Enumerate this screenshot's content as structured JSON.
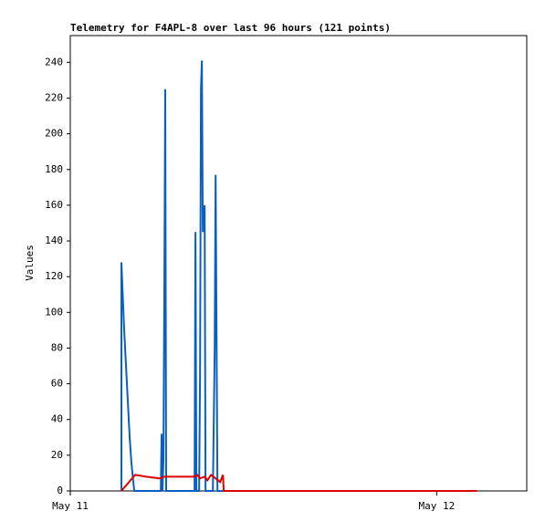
{
  "chart_data": {
    "type": "line",
    "title": "Telemetry for F4APL-8 over last 96 hours (121 points)",
    "y_label": "Values",
    "xlim": [
      0,
      29.9
    ],
    "xticks": [
      {
        "value": 0,
        "label": "May 11"
      },
      {
        "value": 24,
        "label": "May 12"
      }
    ],
    "ylim": [
      0,
      255
    ],
    "yticks": [
      0,
      20,
      40,
      60,
      80,
      100,
      120,
      140,
      160,
      180,
      200,
      220,
      240
    ],
    "grid": false,
    "series": [
      {
        "color": "#0a5fc4",
        "x": [
          3.35,
          3.35,
          3.41,
          3.53,
          3.65,
          3.77,
          3.89,
          4.01,
          4.19,
          5.93,
          5.98,
          6.04,
          6.1,
          6.16,
          6.22,
          6.28,
          8.14,
          8.2,
          8.26,
          8.44,
          8.5,
          8.56,
          8.62,
          8.68,
          8.8,
          8.86,
          9.34,
          9.4,
          9.46,
          9.52,
          9.58,
          9.64,
          26.63
        ],
        "values": [
          0,
          128,
          115,
          90,
          70,
          50,
          30,
          15,
          0,
          0,
          32,
          0,
          17,
          112,
          225,
          0,
          0,
          145,
          0,
          0,
          65,
          225,
          241,
          145,
          160,
          0,
          0,
          40,
          80,
          177,
          88,
          0,
          0
        ]
      },
      {
        "color": "#e00000",
        "x": [
          3.35,
          4.25,
          4.97,
          5.87,
          6.16,
          8.08,
          8.32,
          8.5,
          8.8,
          8.98,
          9.22,
          9.52,
          9.82,
          10.0,
          10.05,
          26.63
        ],
        "values": [
          0,
          9,
          8,
          7,
          8,
          8,
          9,
          7,
          8,
          6,
          9,
          7,
          5,
          9,
          0,
          0
        ]
      }
    ]
  }
}
